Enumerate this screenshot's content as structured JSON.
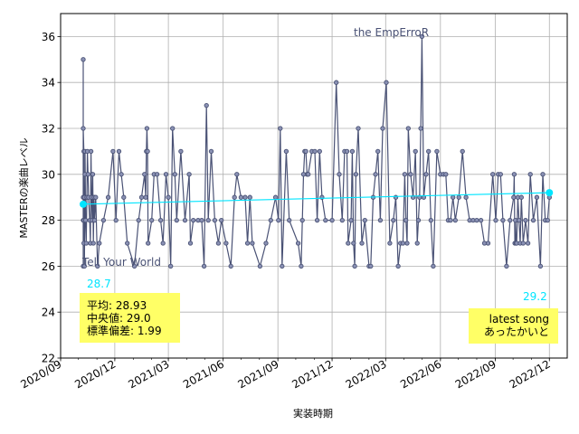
{
  "chart_data": {
    "type": "line",
    "title": "",
    "xlabel": "実装時期",
    "ylabel": "MASTERの楽曲レベル",
    "xlim": [
      "2020-09-01",
      "2022-12-31"
    ],
    "ylim": [
      22,
      37
    ],
    "x_ticks": [
      "2020/09",
      "2020/12",
      "2021/03",
      "2021/06",
      "2021/09",
      "2021/12",
      "2022/03",
      "2022/06",
      "2022/09",
      "2022/12"
    ],
    "y_ticks": [
      22,
      24,
      26,
      28,
      30,
      32,
      34,
      36
    ],
    "grid": true,
    "colors": {
      "series": "#4a5275",
      "trend": "#00e5ff",
      "stats_box": "#ffff66"
    },
    "series": [
      {
        "x": [
          "2020-10-09",
          "2020-10-09",
          "2020-10-09",
          "2020-10-09",
          "2020-10-09",
          "2020-10-10",
          "2020-10-10",
          "2020-10-10",
          "2020-10-11",
          "2020-10-11",
          "2020-10-12",
          "2020-10-12",
          "2020-10-13",
          "2020-10-14",
          "2020-10-15",
          "2020-10-16",
          "2020-10-17",
          "2020-10-18",
          "2020-10-20",
          "2020-10-21",
          "2020-10-22",
          "2020-10-23",
          "2020-10-24",
          "2020-10-25",
          "2020-10-26",
          "2020-10-27",
          "2020-10-28",
          "2020-10-30",
          "2020-11-02",
          "2020-11-05",
          "2020-11-12",
          "2020-11-20",
          "2020-11-28",
          "2020-12-03",
          "2020-12-08",
          "2020-12-12",
          "2020-12-16",
          "2020-12-22",
          "2021-01-03",
          "2021-01-10",
          "2021-01-15",
          "2021-01-20",
          "2021-01-22",
          "2021-01-23",
          "2021-01-24",
          "2021-01-25",
          "2021-01-26",
          "2021-02-01",
          "2021-02-05",
          "2021-02-10",
          "2021-02-16",
          "2021-02-20",
          "2021-02-25",
          "2021-03-01",
          "2021-03-05",
          "2021-03-08",
          "2021-03-12",
          "2021-03-15",
          "2021-03-22",
          "2021-03-29",
          "2021-04-05",
          "2021-04-07",
          "2021-04-12",
          "2021-04-20",
          "2021-04-26",
          "2021-04-30",
          "2021-05-04",
          "2021-05-07",
          "2021-05-12",
          "2021-05-18",
          "2021-05-24",
          "2021-05-29",
          "2021-06-06",
          "2021-06-14",
          "2021-06-20",
          "2021-06-24",
          "2021-07-01",
          "2021-07-08",
          "2021-07-12",
          "2021-07-16",
          "2021-07-20",
          "2021-08-02",
          "2021-08-12",
          "2021-08-20",
          "2021-08-28",
          "2021-09-02",
          "2021-09-05",
          "2021-09-08",
          "2021-09-15",
          "2021-09-20",
          "2021-10-05",
          "2021-10-10",
          "2021-10-12",
          "2021-10-14",
          "2021-10-16",
          "2021-10-18",
          "2021-10-20",
          "2021-10-22",
          "2021-10-28",
          "2021-11-02",
          "2021-11-06",
          "2021-11-10",
          "2021-11-14",
          "2021-11-20",
          "2021-12-01",
          "2021-12-08",
          "2021-12-13",
          "2021-12-18",
          "2021-12-22",
          "2021-12-26",
          "2021-12-28",
          "2022-01-02",
          "2022-01-04",
          "2022-01-06",
          "2022-01-08",
          "2022-01-10",
          "2022-01-14",
          "2022-01-20",
          "2022-01-25",
          "2022-02-01",
          "2022-02-04",
          "2022-02-08",
          "2022-02-12",
          "2022-02-16",
          "2022-02-20",
          "2022-02-24",
          "2022-03-02",
          "2022-03-08",
          "2022-03-14",
          "2022-03-18",
          "2022-03-22",
          "2022-03-26",
          "2022-03-30",
          "2022-04-02",
          "2022-04-04",
          "2022-04-06",
          "2022-04-08",
          "2022-04-12",
          "2022-04-16",
          "2022-04-20",
          "2022-04-23",
          "2022-04-25",
          "2022-04-27",
          "2022-04-29",
          "2022-05-01",
          "2022-05-04",
          "2022-05-08",
          "2022-05-12",
          "2022-05-16",
          "2022-05-20",
          "2022-05-26",
          "2022-06-01",
          "2022-06-06",
          "2022-06-10",
          "2022-06-14",
          "2022-06-18",
          "2022-06-22",
          "2022-06-26",
          "2022-07-02",
          "2022-07-08",
          "2022-07-14",
          "2022-07-20",
          "2022-07-26",
          "2022-08-01",
          "2022-08-08",
          "2022-08-14",
          "2022-08-20",
          "2022-08-28",
          "2022-09-02",
          "2022-09-06",
          "2022-09-10",
          "2022-09-14",
          "2022-09-20",
          "2022-09-26",
          "2022-10-02",
          "2022-10-03",
          "2022-10-04",
          "2022-10-05",
          "2022-10-06",
          "2022-10-07",
          "2022-10-09",
          "2022-10-11",
          "2022-10-13",
          "2022-10-15",
          "2022-10-18",
          "2022-10-22",
          "2022-10-26",
          "2022-10-30",
          "2022-11-04",
          "2022-11-10",
          "2022-11-16",
          "2022-11-20",
          "2022-11-24",
          "2022-11-28",
          "2022-12-01"
        ],
        "y": [
          28,
          35,
          26,
          29,
          32,
          31,
          27,
          28,
          29,
          26,
          30,
          31,
          28,
          27,
          29,
          31,
          30,
          29,
          28,
          27,
          31,
          29,
          28,
          30,
          27,
          29,
          28,
          29,
          26,
          27,
          28,
          29,
          31,
          28,
          31,
          30,
          29,
          27,
          26,
          28,
          29,
          30,
          29,
          31,
          32,
          31,
          27,
          28,
          30,
          30,
          28,
          27,
          30,
          29,
          26,
          32,
          30,
          28,
          31,
          28,
          30,
          27,
          28,
          28,
          28,
          26,
          33,
          28,
          31,
          28,
          27,
          28,
          27,
          26,
          29,
          30,
          29,
          29,
          27,
          29,
          27,
          26,
          27,
          28,
          29,
          28,
          32,
          26,
          31,
          28,
          27,
          26,
          28,
          30,
          31,
          31,
          30,
          30,
          31,
          31,
          28,
          31,
          29,
          28,
          28,
          34,
          30,
          28,
          31,
          31,
          27,
          28,
          31,
          27,
          26,
          30,
          32,
          27,
          28,
          26,
          26,
          29,
          30,
          31,
          28,
          32,
          34,
          27,
          28,
          29,
          26,
          27,
          27,
          30,
          28,
          27,
          32,
          30,
          29,
          31,
          27,
          28,
          29,
          32,
          36,
          29,
          30,
          31,
          28,
          26,
          31,
          30,
          30,
          30,
          28,
          28,
          29,
          28,
          29,
          31,
          29,
          28,
          28,
          28,
          28,
          27,
          27,
          30,
          28,
          30,
          30,
          28,
          26,
          28,
          29,
          30,
          27,
          28,
          27,
          27,
          29,
          28,
          27,
          29,
          27,
          28,
          27,
          30,
          28,
          29,
          26,
          30,
          28,
          28,
          29
        ]
      }
    ],
    "trend": {
      "start": 28.7,
      "end": 29.2
    },
    "annotations": {
      "first_song": "Tell Your World",
      "max_song": "the EmpErroR",
      "start_value": "28.7",
      "end_value": "29.2",
      "latest_label": "latest song",
      "latest_title": "あったかいと"
    },
    "stats": {
      "mean_label": "平均: 28.93",
      "median_label": "中央値: 29.0",
      "std_label": "標準偏差:  1.99"
    }
  }
}
